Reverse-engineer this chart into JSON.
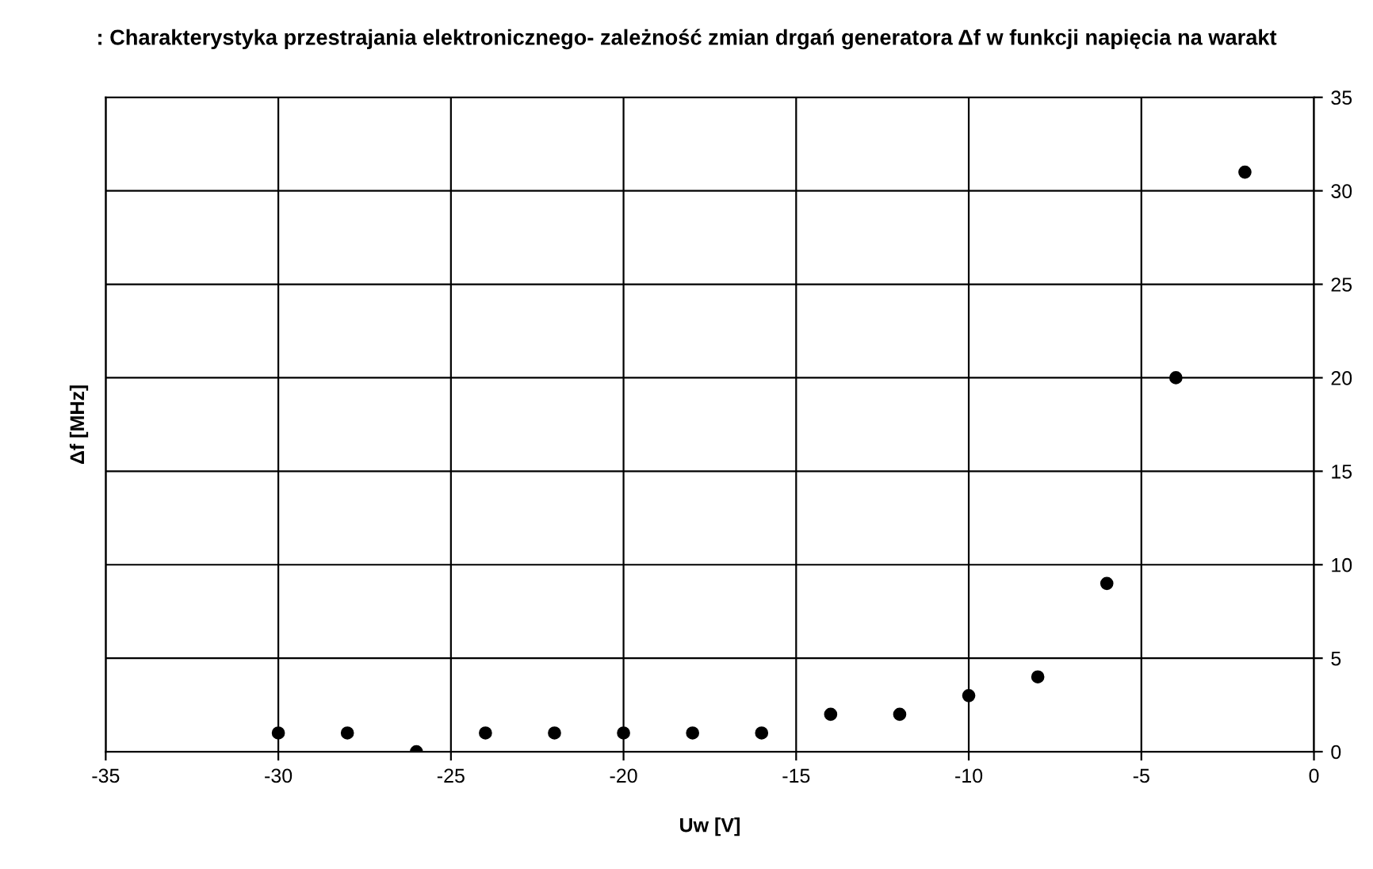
{
  "chart_data": {
    "type": "scatter",
    "title": ": Charakterystyka przestrajania elektronicznego- zależność zmian drgań generatora Δf w funkcji napięcia na warakt",
    "xlabel": "Uw [V]",
    "ylabel": "Δf [MHz]",
    "x": [
      -30,
      -28,
      -26,
      -24,
      -22,
      -20,
      -18,
      -16,
      -14,
      -12,
      -10,
      -8,
      -6,
      -4,
      -2
    ],
    "series": [
      {
        "color": "#000000",
        "values": [
          1,
          1,
          0,
          1,
          1,
          1,
          1,
          1,
          2,
          2,
          3,
          4,
          9,
          20,
          31
        ]
      }
    ],
    "xlim": [
      -35,
      0
    ],
    "xticks": [
      -35,
      -30,
      -25,
      -20,
      -15,
      -10,
      -5,
      0
    ],
    "ylim": [
      0,
      35
    ],
    "yticks": [
      0,
      5,
      10,
      15,
      20,
      25,
      30,
      35
    ],
    "grid": true,
    "marker": "circle"
  }
}
